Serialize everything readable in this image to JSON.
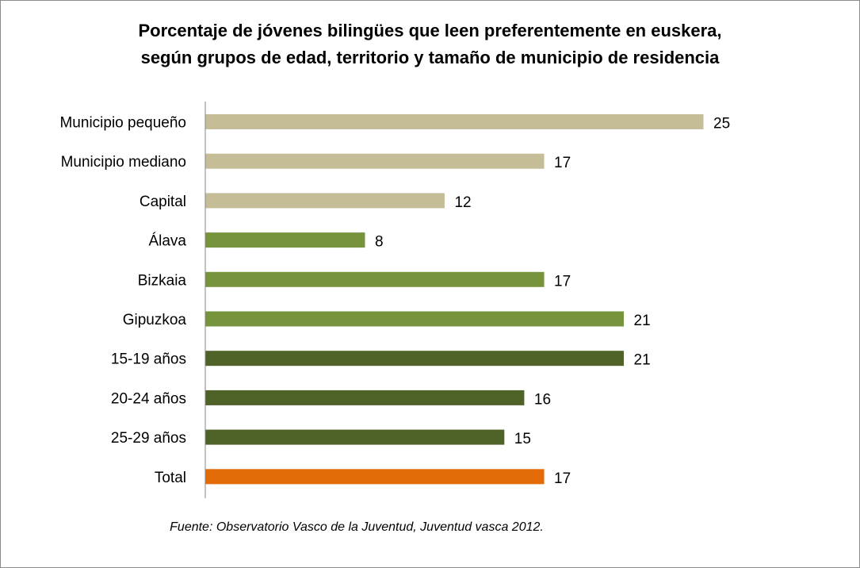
{
  "chart_data": {
    "type": "bar",
    "orientation": "horizontal",
    "title": "Porcentaje de jóvenes bilingües que leen preferentemente en euskera, según grupos de edad, territorio y tamaño de municipio de residencia",
    "title_lines": [
      "Porcentaje de jóvenes bilingües que leen preferentemente en euskera,",
      "según grupos de edad, territorio y tamaño de municipio de residencia"
    ],
    "xlabel": "",
    "ylabel": "",
    "xlim": [
      0,
      25
    ],
    "grid": false,
    "legend": "none",
    "categories": [
      "Municipio pequeño",
      "Municipio mediano",
      "Capital",
      "Álava",
      "Bizkaia",
      "Gipuzkoa",
      "15-19 años",
      "20-24 años",
      "25-29 años",
      "Total"
    ],
    "values": [
      25,
      17,
      12,
      8,
      17,
      21,
      21,
      16,
      15,
      17
    ],
    "groups": [
      "municipio",
      "municipio",
      "municipio",
      "territorio",
      "territorio",
      "territorio",
      "edad",
      "edad",
      "edad",
      "total"
    ],
    "group_colors": {
      "municipio": "#c4bd97",
      "territorio": "#77933c",
      "edad": "#4f6228",
      "total": "#e36c09"
    },
    "source": "Fuente: Observatorio Vasco de la Juventud, Juventud vasca 2012."
  }
}
